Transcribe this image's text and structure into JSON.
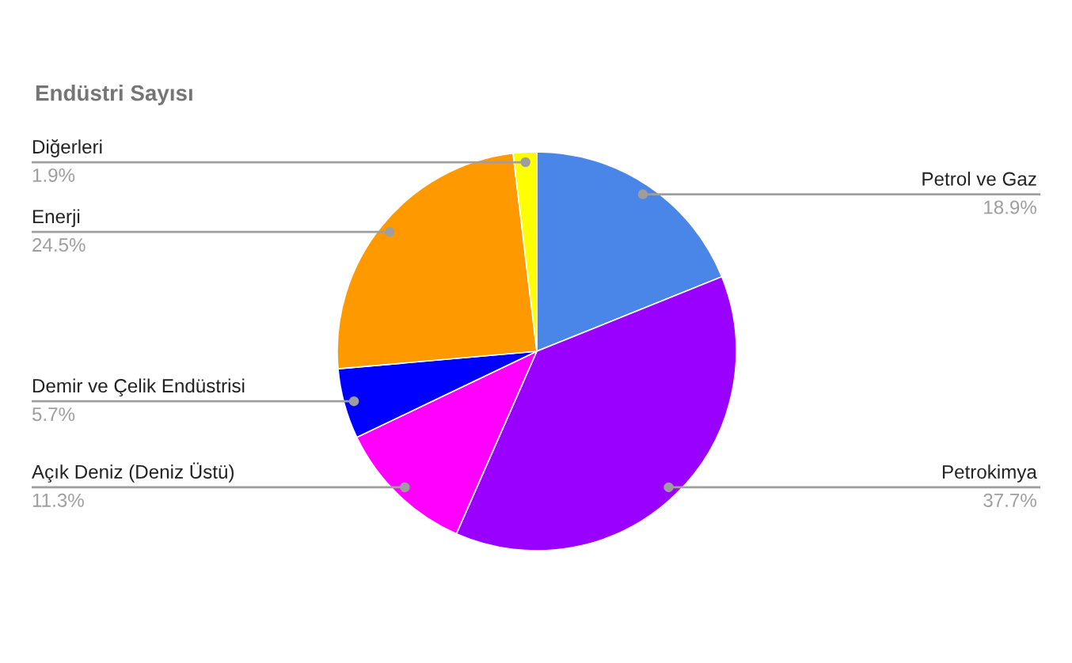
{
  "chart_data": {
    "type": "pie",
    "title": "Endüstri Sayısı",
    "categories": [
      "Petrol ve Gaz",
      "Petrokimya",
      "Açık Deniz (Deniz Üstü)",
      "Demir ve Çelik Endüstrisi",
      "Enerji",
      "Diğerleri"
    ],
    "values": [
      18.9,
      37.7,
      11.3,
      5.7,
      24.5,
      1.9
    ],
    "colors": [
      "#4a86e8",
      "#9900ff",
      "#ff00ff",
      "#0000ff",
      "#ff9900",
      "#ffff00"
    ],
    "value_labels": [
      "18.9%",
      "37.7%",
      "11.3%",
      "5.7%",
      "24.5%",
      "1.9%"
    ]
  }
}
